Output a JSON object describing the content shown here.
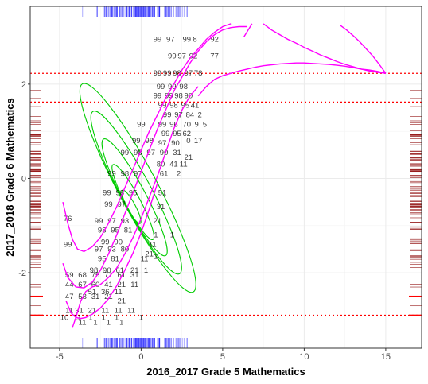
{
  "chart_data": {
    "type": "scatter",
    "title": "",
    "xlabel": "2016_2017 Grade 5 Mathematics",
    "ylabel": "2017_2018 Grade 6 Mathematics",
    "xlim": [
      -6.8,
      17.2
    ],
    "ylim": [
      -3.6,
      3.65
    ],
    "x_ticks": [
      -5,
      0,
      5,
      10,
      15
    ],
    "y_ticks": [
      -2,
      0,
      2
    ],
    "x_tick_labels": [
      "-5",
      "0",
      "5",
      "10",
      "15"
    ],
    "y_tick_labels": [
      "-2",
      "0",
      "2"
    ],
    "grid": true,
    "legend": "none",
    "colors": {
      "points": "#000000",
      "density_contours": "#00cc00",
      "fit_curves": "#ff00ff",
      "reference_lines": "#ff0000",
      "x_rug": "#0000ff",
      "y_rug": "#8b0000",
      "panel_border": "#333333",
      "grid": "#ebebeb"
    },
    "reference_lines_y": [
      2.23,
      1.62,
      -2.9
    ],
    "point_labels": [
      {
        "x": 1.0,
        "y": 2.95,
        "label": "99"
      },
      {
        "x": 1.8,
        "y": 2.95,
        "label": "97"
      },
      {
        "x": 2.8,
        "y": 2.95,
        "label": "99"
      },
      {
        "x": 3.3,
        "y": 2.95,
        "label": "8"
      },
      {
        "x": 4.5,
        "y": 2.95,
        "label": "92"
      },
      {
        "x": 1.9,
        "y": 2.6,
        "label": "99"
      },
      {
        "x": 2.5,
        "y": 2.6,
        "label": "97"
      },
      {
        "x": 3.2,
        "y": 2.6,
        "label": "92"
      },
      {
        "x": 4.5,
        "y": 2.6,
        "label": "77"
      },
      {
        "x": 1.0,
        "y": 2.23,
        "label": "99"
      },
      {
        "x": 1.6,
        "y": 2.23,
        "label": "99"
      },
      {
        "x": 2.2,
        "y": 2.23,
        "label": "98"
      },
      {
        "x": 2.9,
        "y": 2.23,
        "label": "97"
      },
      {
        "x": 3.5,
        "y": 2.23,
        "label": "78"
      },
      {
        "x": 1.2,
        "y": 1.95,
        "label": "99"
      },
      {
        "x": 1.9,
        "y": 1.95,
        "label": "99"
      },
      {
        "x": 2.6,
        "y": 1.95,
        "label": "98"
      },
      {
        "x": 1.0,
        "y": 1.75,
        "label": "99"
      },
      {
        "x": 1.7,
        "y": 1.75,
        "label": "99"
      },
      {
        "x": 2.3,
        "y": 1.75,
        "label": "98"
      },
      {
        "x": 2.9,
        "y": 1.75,
        "label": "90"
      },
      {
        "x": 1.3,
        "y": 1.55,
        "label": "99"
      },
      {
        "x": 2.0,
        "y": 1.55,
        "label": "98"
      },
      {
        "x": 2.7,
        "y": 1.55,
        "label": "95"
      },
      {
        "x": 3.3,
        "y": 1.55,
        "label": "41"
      },
      {
        "x": 1.6,
        "y": 1.35,
        "label": "99"
      },
      {
        "x": 2.3,
        "y": 1.35,
        "label": "97"
      },
      {
        "x": 3.0,
        "y": 1.35,
        "label": "84"
      },
      {
        "x": 3.6,
        "y": 1.35,
        "label": "2"
      },
      {
        "x": 1.3,
        "y": 1.15,
        "label": "99"
      },
      {
        "x": 2.0,
        "y": 1.15,
        "label": "96"
      },
      {
        "x": 2.8,
        "y": 1.15,
        "label": "70"
      },
      {
        "x": 3.4,
        "y": 1.15,
        "label": "9"
      },
      {
        "x": 3.9,
        "y": 1.15,
        "label": "5"
      },
      {
        "x": 1.5,
        "y": 0.95,
        "label": "99"
      },
      {
        "x": 2.2,
        "y": 0.95,
        "label": "95"
      },
      {
        "x": 2.8,
        "y": 0.95,
        "label": "62"
      },
      {
        "x": 0.0,
        "y": 1.15,
        "label": "99"
      },
      {
        "x": -0.3,
        "y": 0.8,
        "label": "99"
      },
      {
        "x": 0.5,
        "y": 0.8,
        "label": "98"
      },
      {
        "x": 1.3,
        "y": 0.75,
        "label": "97"
      },
      {
        "x": 2.1,
        "y": 0.75,
        "label": "90"
      },
      {
        "x": 2.9,
        "y": 0.8,
        "label": "0"
      },
      {
        "x": 3.5,
        "y": 0.8,
        "label": "17"
      },
      {
        "x": -1.0,
        "y": 0.55,
        "label": "99"
      },
      {
        "x": -0.2,
        "y": 0.55,
        "label": "98"
      },
      {
        "x": 0.6,
        "y": 0.55,
        "label": "97"
      },
      {
        "x": 1.4,
        "y": 0.55,
        "label": "90"
      },
      {
        "x": 2.2,
        "y": 0.55,
        "label": "31"
      },
      {
        "x": 2.9,
        "y": 0.45,
        "label": "21"
      },
      {
        "x": 1.2,
        "y": 0.3,
        "label": "80"
      },
      {
        "x": 2.0,
        "y": 0.3,
        "label": "41"
      },
      {
        "x": 2.6,
        "y": 0.3,
        "label": "11"
      },
      {
        "x": -1.8,
        "y": 0.1,
        "label": "99"
      },
      {
        "x": -1.0,
        "y": 0.1,
        "label": "98"
      },
      {
        "x": -0.2,
        "y": 0.1,
        "label": "97"
      },
      {
        "x": 1.4,
        "y": 0.1,
        "label": "61"
      },
      {
        "x": 2.3,
        "y": 0.1,
        "label": "2"
      },
      {
        "x": -2.1,
        "y": -0.3,
        "label": "99"
      },
      {
        "x": -1.3,
        "y": -0.3,
        "label": "98"
      },
      {
        "x": -0.5,
        "y": -0.3,
        "label": "95"
      },
      {
        "x": 1.3,
        "y": -0.3,
        "label": "51"
      },
      {
        "x": -2.0,
        "y": -0.55,
        "label": "99"
      },
      {
        "x": -1.2,
        "y": -0.55,
        "label": "97"
      },
      {
        "x": 1.2,
        "y": -0.6,
        "label": "31"
      },
      {
        "x": -4.5,
        "y": -0.85,
        "label": "76"
      },
      {
        "x": -2.6,
        "y": -0.9,
        "label": "99"
      },
      {
        "x": -1.8,
        "y": -0.9,
        "label": "97"
      },
      {
        "x": -1.0,
        "y": -0.9,
        "label": "93"
      },
      {
        "x": 1.0,
        "y": -0.9,
        "label": "21"
      },
      {
        "x": -2.4,
        "y": -1.1,
        "label": "98"
      },
      {
        "x": -1.6,
        "y": -1.1,
        "label": "95"
      },
      {
        "x": -0.8,
        "y": -1.1,
        "label": "81"
      },
      {
        "x": 0.9,
        "y": -1.2,
        "label": "1"
      },
      {
        "x": -2.2,
        "y": -1.35,
        "label": "99"
      },
      {
        "x": -1.4,
        "y": -1.35,
        "label": "90"
      },
      {
        "x": 0.7,
        "y": -1.4,
        "label": "11"
      },
      {
        "x": 1.9,
        "y": -1.2,
        "label": "1"
      },
      {
        "x": -4.5,
        "y": -1.4,
        "label": "99"
      },
      {
        "x": -2.6,
        "y": -1.5,
        "label": "97"
      },
      {
        "x": -1.8,
        "y": -1.5,
        "label": "93"
      },
      {
        "x": -1.0,
        "y": -1.5,
        "label": "80"
      },
      {
        "x": 0.5,
        "y": -1.6,
        "label": "21"
      },
      {
        "x": -2.4,
        "y": -1.7,
        "label": "95"
      },
      {
        "x": -1.6,
        "y": -1.7,
        "label": "81"
      },
      {
        "x": 0.2,
        "y": -1.7,
        "label": "11"
      },
      {
        "x": 0.9,
        "y": -1.65,
        "label": "1"
      },
      {
        "x": -2.9,
        "y": -1.95,
        "label": "98"
      },
      {
        "x": -2.1,
        "y": -1.95,
        "label": "90"
      },
      {
        "x": -1.3,
        "y": -1.95,
        "label": "61"
      },
      {
        "x": -0.4,
        "y": -1.95,
        "label": "21"
      },
      {
        "x": 0.3,
        "y": -1.95,
        "label": "1"
      },
      {
        "x": -4.4,
        "y": -2.05,
        "label": "59"
      },
      {
        "x": -3.6,
        "y": -2.05,
        "label": "68"
      },
      {
        "x": -2.8,
        "y": -2.05,
        "label": "75"
      },
      {
        "x": -2.0,
        "y": -2.05,
        "label": "71"
      },
      {
        "x": -1.2,
        "y": -2.05,
        "label": "61"
      },
      {
        "x": -0.4,
        "y": -2.05,
        "label": "31"
      },
      {
        "x": -4.4,
        "y": -2.25,
        "label": "44"
      },
      {
        "x": -3.6,
        "y": -2.25,
        "label": "67"
      },
      {
        "x": -2.8,
        "y": -2.25,
        "label": "60"
      },
      {
        "x": -2.0,
        "y": -2.25,
        "label": "41"
      },
      {
        "x": -1.2,
        "y": -2.25,
        "label": "21"
      },
      {
        "x": -0.4,
        "y": -2.25,
        "label": "11"
      },
      {
        "x": -3.0,
        "y": -2.4,
        "label": "51"
      },
      {
        "x": -2.2,
        "y": -2.4,
        "label": "36"
      },
      {
        "x": -1.4,
        "y": -2.4,
        "label": "11"
      },
      {
        "x": -4.4,
        "y": -2.5,
        "label": "47"
      },
      {
        "x": -3.6,
        "y": -2.5,
        "label": "53"
      },
      {
        "x": -2.8,
        "y": -2.5,
        "label": "31"
      },
      {
        "x": -2.0,
        "y": -2.5,
        "label": "21"
      },
      {
        "x": -1.2,
        "y": -2.6,
        "label": "21"
      },
      {
        "x": -4.4,
        "y": -2.8,
        "label": "11"
      },
      {
        "x": -3.8,
        "y": -2.8,
        "label": "31"
      },
      {
        "x": -3.0,
        "y": -2.8,
        "label": "21"
      },
      {
        "x": -2.2,
        "y": -2.8,
        "label": "11"
      },
      {
        "x": -1.4,
        "y": -2.8,
        "label": "11"
      },
      {
        "x": -0.6,
        "y": -2.8,
        "label": "11"
      },
      {
        "x": -4.7,
        "y": -2.95,
        "label": "10"
      },
      {
        "x": -3.9,
        "y": -2.95,
        "label": "11"
      },
      {
        "x": -3.1,
        "y": -2.95,
        "label": "1"
      },
      {
        "x": -2.3,
        "y": -2.95,
        "label": "1"
      },
      {
        "x": -1.5,
        "y": -2.95,
        "label": "1"
      },
      {
        "x": 0.0,
        "y": -2.95,
        "label": "1"
      },
      {
        "x": -3.6,
        "y": -3.05,
        "label": "11"
      },
      {
        "x": -2.8,
        "y": -3.05,
        "label": "1"
      },
      {
        "x": -2.0,
        "y": -3.05,
        "label": "1"
      },
      {
        "x": -1.2,
        "y": -3.05,
        "label": "1"
      }
    ],
    "fit_curves": [
      {
        "x": [
          -4.8,
          -4.5,
          -4.2,
          -3.9,
          -3.5,
          -3.0,
          -2.5,
          -2.0,
          -1.5,
          -1.0,
          -0.5,
          0.0,
          0.5,
          1.0,
          1.5,
          2.0,
          2.5,
          3.0,
          3.5,
          4.0,
          4.5,
          5.0,
          5.5
        ],
        "y": [
          -0.5,
          -0.95,
          -1.3,
          -1.5,
          -1.55,
          -1.45,
          -1.25,
          -0.95,
          -0.6,
          -0.2,
          0.2,
          0.6,
          1.0,
          1.35,
          1.7,
          2.0,
          2.3,
          2.55,
          2.75,
          2.95,
          3.1,
          3.22,
          3.28
        ]
      },
      {
        "x": [
          -4.8,
          -4.5,
          -4.0,
          -3.5,
          -3.0,
          -2.5,
          -2.0,
          -1.5,
          -1.0,
          -0.5,
          0.0,
          0.5,
          1.0,
          1.5,
          2.0,
          2.5,
          3.0,
          3.5,
          4.0,
          4.5,
          5.0,
          5.5,
          6.0,
          6.5
        ],
        "y": [
          -1.8,
          -2.1,
          -2.3,
          -2.32,
          -2.2,
          -1.95,
          -1.6,
          -1.2,
          -0.75,
          -0.3,
          0.15,
          0.6,
          1.05,
          1.45,
          1.85,
          2.15,
          2.45,
          2.7,
          2.9,
          3.05,
          3.15,
          3.2,
          3.22,
          3.22
        ]
      },
      {
        "x": [
          -4.2,
          -4.0,
          -3.7,
          -3.4,
          -3.0,
          -2.5,
          -2.0,
          -1.5,
          -1.0,
          -0.5,
          0.0,
          0.5,
          1.0,
          1.5,
          2.0,
          2.5,
          3.0,
          3.5
        ],
        "y": [
          -3.15,
          -2.95,
          -2.6,
          -2.4,
          -2.3,
          -2.25,
          -2.1,
          -1.9,
          -1.6,
          -1.25,
          -0.85,
          -0.4,
          0.05,
          0.55,
          1.05,
          1.45,
          1.75,
          1.95
        ]
      },
      {
        "x": [
          -4.6,
          -4.3,
          -4.0,
          -3.7,
          -3.4,
          -3.0,
          -2.5,
          -2.0,
          -1.5,
          -1.0,
          -0.5,
          0.0,
          0.5,
          1.0
        ],
        "y": [
          -2.6,
          -2.85,
          -2.95,
          -2.97,
          -2.95,
          -2.88,
          -2.75,
          -2.55,
          -2.28,
          -1.95,
          -1.58,
          -1.15,
          -0.65,
          -0.1
        ]
      },
      {
        "x": [
          3.5,
          4.0,
          4.5,
          5.0,
          5.5,
          6.0,
          6.5,
          7.0,
          7.5,
          8.0,
          8.5,
          9.0,
          9.5,
          10.0,
          10.5,
          11.0,
          11.5,
          12.0,
          12.5,
          13.0,
          13.5,
          14.0,
          14.5,
          15.0
        ],
        "y": [
          1.75,
          1.95,
          2.1,
          2.18,
          2.23,
          2.28,
          2.32,
          2.36,
          2.39,
          2.41,
          2.43,
          2.44,
          2.45,
          2.45,
          2.44,
          2.43,
          2.42,
          2.4,
          2.38,
          2.35,
          2.32,
          2.3,
          2.27,
          2.23
        ]
      },
      {
        "x": [
          6.3,
          6.8
        ],
        "y": [
          3.0,
          3.28
        ]
      },
      {
        "x": [
          7.5,
          8.0,
          8.5,
          9.0,
          9.5,
          10.0,
          10.5,
          11.0,
          11.5,
          12.0,
          12.5,
          13.0,
          13.5,
          14.0,
          14.5,
          15.0
        ],
        "y": [
          3.28,
          3.15,
          3.05,
          2.95,
          2.87,
          2.78,
          2.7,
          2.62,
          2.55,
          2.48,
          2.42,
          2.37,
          2.32,
          2.28,
          2.25,
          2.23
        ]
      },
      {
        "x": [
          12.2,
          12.6,
          13.0,
          13.4,
          13.8,
          14.2,
          14.6,
          15.0
        ],
        "y": [
          3.25,
          3.15,
          3.03,
          2.9,
          2.75,
          2.6,
          2.42,
          2.23
        ]
      }
    ],
    "density_contours": [
      {
        "cx": -0.6,
        "cy": -0.6,
        "rx": 0.25,
        "ry": 0.4,
        "angle": 62
      },
      {
        "cx": -0.5,
        "cy": -0.5,
        "rx": 0.45,
        "ry": 0.9,
        "angle": 62
      },
      {
        "cx": -0.4,
        "cy": -0.4,
        "rx": 0.7,
        "ry": 1.4,
        "angle": 62
      },
      {
        "cx": -0.3,
        "cy": -0.3,
        "rx": 0.95,
        "ry": 1.95,
        "angle": 62
      },
      {
        "cx": -0.2,
        "cy": -0.2,
        "rx": 1.2,
        "ry": 2.5,
        "angle": 62
      }
    ],
    "x_rug_count": 160,
    "y_rug_count": 110
  }
}
